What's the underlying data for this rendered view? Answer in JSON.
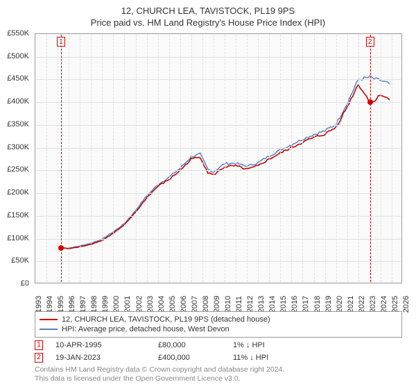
{
  "title": "12, CHURCH LEA, TAVISTOCK, PL19 9PS",
  "subtitle": "Price paid vs. HM Land Registry's House Price Index (HPI)",
  "chart": {
    "type": "line",
    "background_color": "#fafafa",
    "border_color": "#999999",
    "grid_color": "#e0e0e0",
    "xlim": [
      1993,
      2026
    ],
    "ylim": [
      0,
      550000
    ],
    "ytick_step": 50000,
    "ytick_labels": [
      "£0",
      "£50K",
      "£100K",
      "£150K",
      "£200K",
      "£250K",
      "£300K",
      "£350K",
      "£400K",
      "£450K",
      "£500K",
      "£550K"
    ],
    "xtick_step": 1,
    "xtick_labels": [
      "1993",
      "1994",
      "1995",
      "1996",
      "1997",
      "1998",
      "1999",
      "2000",
      "2001",
      "2002",
      "2003",
      "2004",
      "2005",
      "2006",
      "2007",
      "2008",
      "2009",
      "2010",
      "2011",
      "2012",
      "2013",
      "2014",
      "2015",
      "2016",
      "2017",
      "2018",
      "2019",
      "2020",
      "2021",
      "2022",
      "2023",
      "2024",
      "2025",
      "2026"
    ],
    "label_fontsize": 11,
    "title_fontsize": 13,
    "series": [
      {
        "name": "property",
        "label": "12, CHURCH LEA, TAVISTOCK, PL19 9PS (detached house)",
        "color": "#cc0000",
        "line_width": 1.6,
        "x": [
          1995.3,
          1996,
          1997,
          1998,
          1999,
          2000,
          2001,
          2002,
          2003,
          2004,
          2005,
          2006,
          2007,
          2007.8,
          2008.5,
          2009,
          2010,
          2011,
          2012,
          2013,
          2014,
          2015,
          2016,
          2017,
          2018,
          2019,
          2020,
          2021,
          2022,
          2023.05,
          2023.6,
          2024,
          2024.8
        ],
        "y": [
          80000,
          78000,
          82000,
          88000,
          96000,
          112000,
          130000,
          158000,
          190000,
          215000,
          230000,
          250000,
          275000,
          280000,
          245000,
          240000,
          258000,
          260000,
          252000,
          260000,
          275000,
          288000,
          300000,
          312000,
          322000,
          330000,
          345000,
          390000,
          440000,
          400000,
          405000,
          418000,
          405000
        ]
      },
      {
        "name": "hpi",
        "label": "HPI: Average price, detached house, West Devon",
        "color": "#4a7fc4",
        "line_width": 1.4,
        "x": [
          1995.3,
          1996,
          1997,
          1998,
          1999,
          2000,
          2001,
          2002,
          2003,
          2004,
          2005,
          2006,
          2007,
          2007.8,
          2008.5,
          2009,
          2010,
          2011,
          2012,
          2013,
          2014,
          2015,
          2016,
          2017,
          2018,
          2019,
          2020,
          2021,
          2022,
          2023.05,
          2023.6,
          2024,
          2024.8
        ],
        "y": [
          80000,
          79000,
          84000,
          90000,
          99000,
          115000,
          133000,
          162000,
          194000,
          219000,
          235000,
          255000,
          280000,
          286000,
          252000,
          247000,
          265000,
          266000,
          259000,
          267000,
          282000,
          295000,
          307000,
          319000,
          329000,
          337000,
          352000,
          398000,
          450000,
          455000,
          450000,
          448000,
          440000
        ]
      }
    ],
    "markers": [
      {
        "id": "1",
        "x": 1995.3,
        "y": 80000,
        "color": "#cc0000",
        "label_y_offset": -64
      },
      {
        "id": "2",
        "x": 2023.05,
        "y": 400000,
        "color": "#cc0000",
        "label_y_offset": -292
      }
    ]
  },
  "legend": {
    "items": [
      {
        "color": "#cc0000",
        "label_path": "chart.series.0.label"
      },
      {
        "color": "#4a7fc4",
        "label_path": "chart.series.1.label"
      }
    ]
  },
  "sales": [
    {
      "id": "1",
      "date": "10-APR-1995",
      "price": "£80,000",
      "diff": "1% ↓ HPI"
    },
    {
      "id": "2",
      "date": "19-JAN-2023",
      "price": "£400,000",
      "diff": "11% ↓ HPI"
    }
  ],
  "attribution": {
    "line1": "Contains HM Land Registry data © Crown copyright and database right 2024.",
    "line2": "This data is licensed under the Open Government Licence v3.0."
  }
}
